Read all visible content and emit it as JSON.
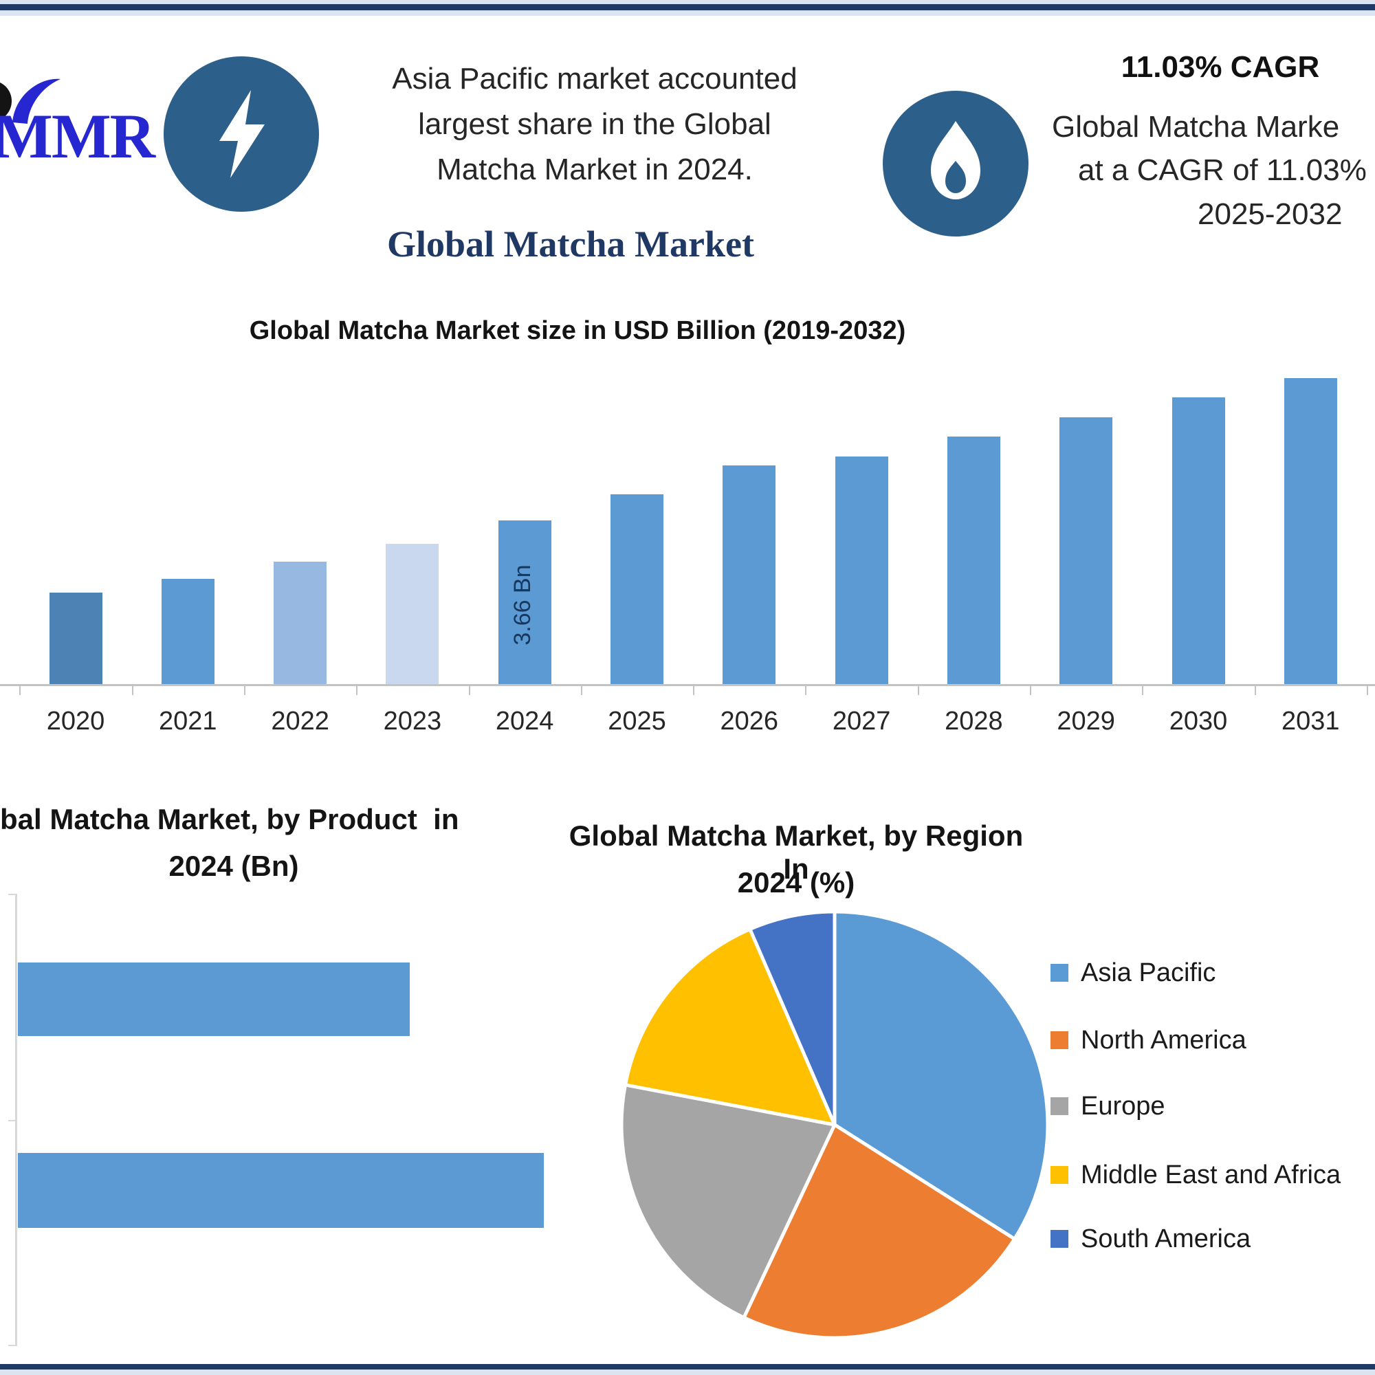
{
  "page": {
    "title": "Global Matcha Market"
  },
  "header": {
    "logo_text": "MMR",
    "left_icon": "lightning-bolt",
    "right_icon": "flame",
    "icon_circle_color": "#2d5f8b",
    "left_lines": [
      "Asia Pacific market accounted",
      "largest share in the Global",
      "Matcha Market in 2024."
    ],
    "cagr_headline": "11.03% CAGR",
    "right_lines": [
      "Global Matcha Marke",
      "at a CAGR of 11.03%",
      "2025-2032"
    ]
  },
  "frame": {
    "border_color": "#203a66",
    "strip_color": "#dbe5f1"
  },
  "chart_data": [
    {
      "type": "bar",
      "title": "Global Matcha Market size in USD Billion (2019-2032)",
      "xlabel": "",
      "ylabel": "USD Billion",
      "categories": [
        "2020",
        "2021",
        "2022",
        "2023",
        "2024",
        "2025",
        "2026",
        "2027",
        "2028",
        "2029",
        "2030",
        "2031"
      ],
      "values": [
        2.06,
        2.36,
        2.74,
        3.14,
        3.66,
        4.24,
        4.88,
        5.08,
        5.52,
        5.95,
        6.39,
        6.81
      ],
      "bar_colors": [
        "#4d82b4",
        "#5b9ad3",
        "#96b8e1",
        "#c9d8ee",
        "#5b9ad3",
        "#5b9ad3",
        "#5b9ad3",
        "#5b9ad3",
        "#5b9ad3",
        "#5b9ad3",
        "#5b9ad3",
        "#5b9ad3"
      ],
      "data_label": {
        "index": 4,
        "text": "3.66 Bn"
      },
      "grid": "off",
      "ylim": [
        0,
        8
      ]
    },
    {
      "type": "bar_horizontal",
      "title_lines": [
        "bal Matcha Market, by Product  in",
        "2024 (Bn)"
      ],
      "categories": [
        "",
        ""
      ],
      "values_relative": [
        0.745,
        1.0
      ],
      "bar_color": "#5b9ad3",
      "grid": "off"
    },
    {
      "type": "pie",
      "title_lines": [
        "Global Matcha Market, by Region In",
        "2024 (%)"
      ],
      "labels": [
        "Asia Pacific",
        "North America",
        "Europe",
        "Middle East and Africa",
        "South America"
      ],
      "values_pct_estimated": [
        34,
        23,
        21,
        15.5,
        6.5
      ],
      "colors": [
        "#5b9bd5",
        "#ed7d31",
        "#a5a5a5",
        "#ffc000",
        "#4472c4"
      ],
      "legend_position": "right"
    }
  ]
}
